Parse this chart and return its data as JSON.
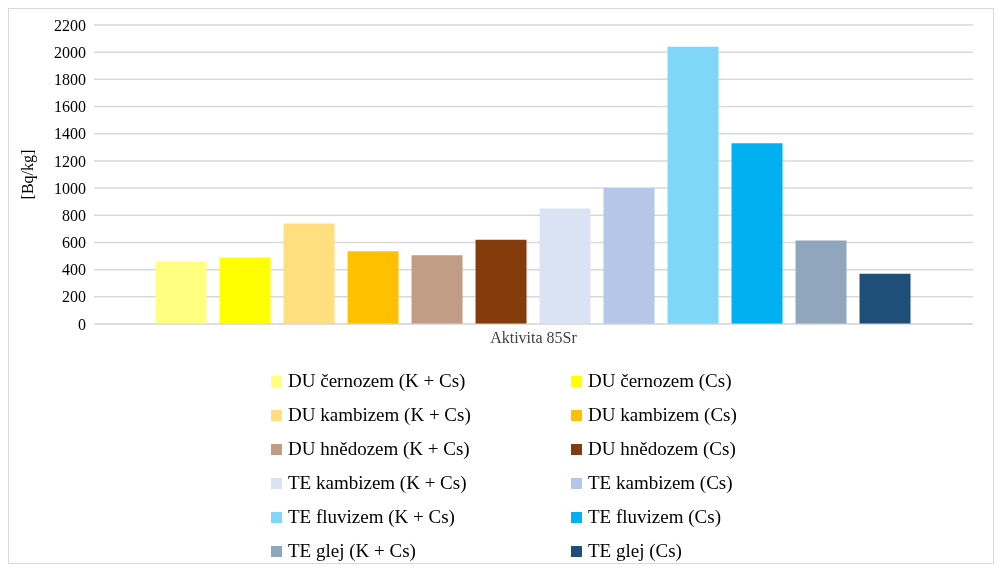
{
  "chart_data": {
    "type": "bar",
    "ylabel": "[Bq/kg]",
    "categories": [
      "Aktivita 85Sr"
    ],
    "series": [
      {
        "name": "DU černozem (K + Cs)",
        "color": "#ffff80",
        "values": [
          460
        ]
      },
      {
        "name": "DU černozem (Cs)",
        "color": "#ffff00",
        "values": [
          490
        ]
      },
      {
        "name": "DU kambizem (K + Cs)",
        "color": "#ffdf80",
        "values": [
          740
        ]
      },
      {
        "name": "DU kambizem (Cs)",
        "color": "#ffc000",
        "values": [
          535
        ]
      },
      {
        "name": "DU hnědozem (K + Cs)",
        "color": "#c19d85",
        "values": [
          505
        ]
      },
      {
        "name": "DU hnědozem (Cs)",
        "color": "#843c0c",
        "values": [
          620
        ]
      },
      {
        "name": "TE kambizem (K + Cs)",
        "color": "#d9e3f3",
        "values": [
          850
        ]
      },
      {
        "name": "TE kambizem (Cs)",
        "color": "#b4c7e7",
        "values": [
          1000
        ]
      },
      {
        "name": "TE fluvizem (K + Cs)",
        "color": "#7fd7f7",
        "values": [
          2040
        ]
      },
      {
        "name": "TE fluvizem (Cs)",
        "color": "#00b0f0",
        "values": [
          1330
        ]
      },
      {
        "name": "TE glej (K + Cs)",
        "color": "#8fa6bc",
        "values": [
          615
        ]
      },
      {
        "name": "TE glej (Cs)",
        "color": "#1f4e79",
        "values": [
          370
        ]
      }
    ],
    "ylim": [
      0,
      2200
    ],
    "yticks": [
      0,
      200,
      400,
      600,
      800,
      1000,
      1200,
      1400,
      1600,
      1800,
      2000,
      2200
    ],
    "grid": "y",
    "legend": "bottom"
  }
}
